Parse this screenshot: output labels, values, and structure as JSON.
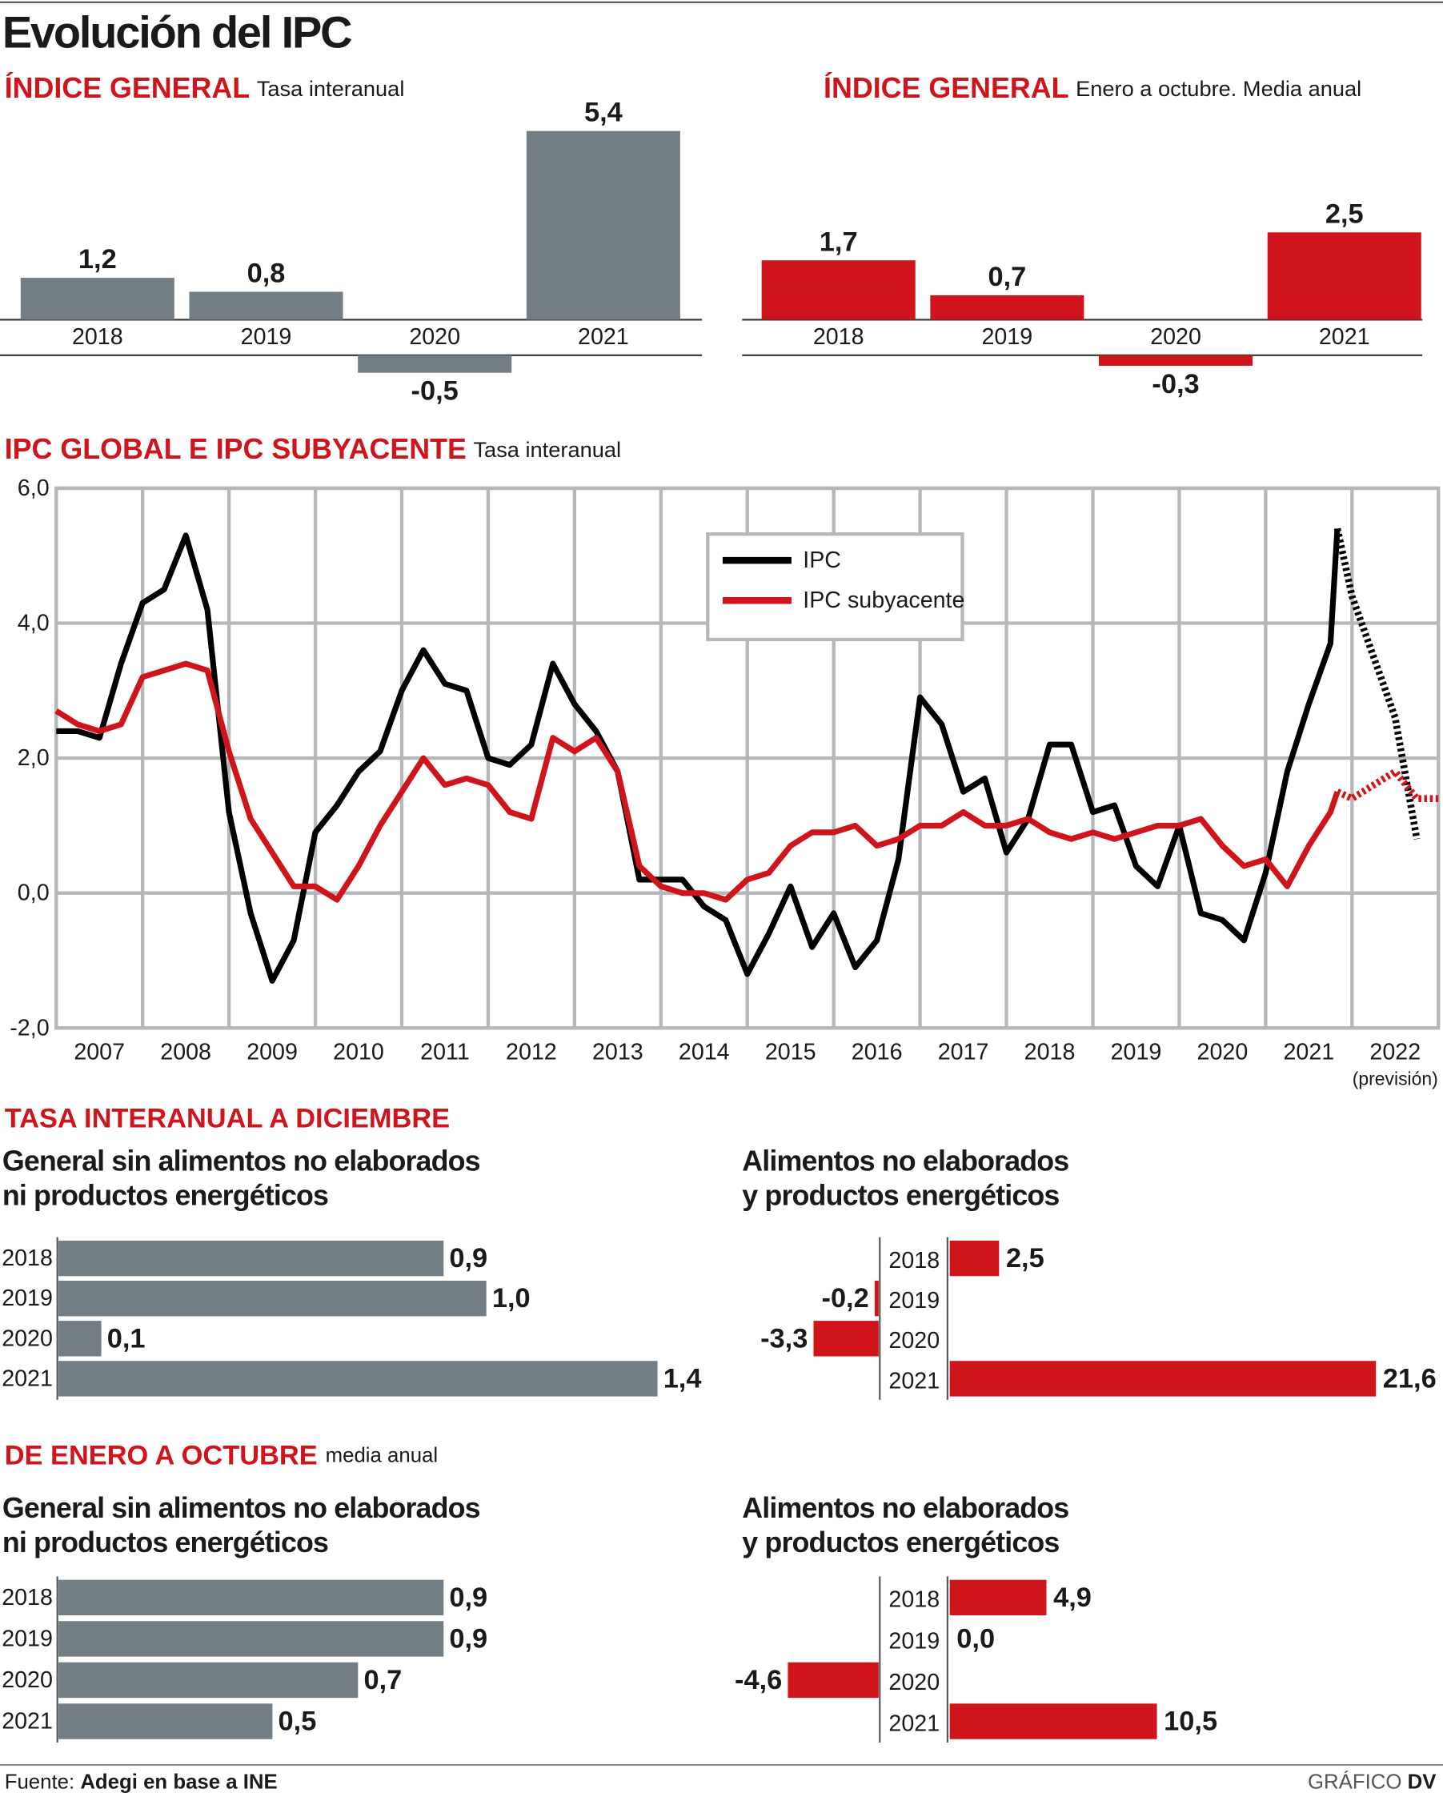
{
  "title": "Evolución del IPC",
  "groups": [
    {
      "title": "TASA INTERANUAL A DICIEMBRE"
    },
    {
      "title": "DE ENERO A OCTUBRE",
      "subtitle": "media anual"
    }
  ],
  "source": {
    "label": "Fuente:",
    "text": "Adegi en base a INE"
  },
  "credit": {
    "label": "GRÁFICO",
    "text": "DV"
  },
  "chart_data": [
    {
      "type": "bar",
      "title": "ÍNDICE GENERAL",
      "subtitle": "Tasa interanual",
      "categories": [
        "2018",
        "2019",
        "2020",
        "2021"
      ],
      "values": [
        1.2,
        0.8,
        -0.5,
        5.4
      ],
      "value_labels": [
        "1,2",
        "0,8",
        "-0,5",
        "5,4"
      ],
      "color": "#737d84"
    },
    {
      "type": "bar",
      "title": "ÍNDICE GENERAL",
      "subtitle": "Enero a octubre. Media anual",
      "categories": [
        "2018",
        "2019",
        "2020",
        "2021"
      ],
      "values": [
        1.7,
        0.7,
        -0.3,
        2.5
      ],
      "value_labels": [
        "1,7",
        "0,7",
        "-0,3",
        "2,5"
      ],
      "color": "#d0141b"
    },
    {
      "type": "line",
      "title": "IPC GLOBAL E IPC SUBYACENTE",
      "subtitle": "Tasa interanual",
      "x": [
        2007,
        2007.25,
        2007.5,
        2007.75,
        2008,
        2008.25,
        2008.5,
        2008.75,
        2009,
        2009.25,
        2009.5,
        2009.75,
        2010,
        2010.25,
        2010.5,
        2010.75,
        2011,
        2011.25,
        2011.5,
        2011.75,
        2012,
        2012.25,
        2012.5,
        2012.75,
        2013,
        2013.25,
        2013.5,
        2013.75,
        2014,
        2014.25,
        2014.5,
        2014.75,
        2015,
        2015.25,
        2015.5,
        2015.75,
        2016,
        2016.25,
        2016.5,
        2016.75,
        2017,
        2017.25,
        2017.5,
        2017.75,
        2018,
        2018.25,
        2018.5,
        2018.75,
        2019,
        2019.25,
        2019.5,
        2019.75,
        2020,
        2020.25,
        2020.5,
        2020.75,
        2021,
        2021.25,
        2021.5,
        2021.75,
        2021.83,
        2022,
        2022.25,
        2022.5,
        2022.75,
        2023
      ],
      "xlim": [
        2007,
        2023
      ],
      "xticks": [
        2007,
        2008,
        2009,
        2010,
        2011,
        2012,
        2013,
        2014,
        2015,
        2016,
        2017,
        2018,
        2019,
        2020,
        2021,
        2022
      ],
      "x_note": "(previsión)",
      "ylim": [
        -2,
        6
      ],
      "yticks": [
        {
          "value": -2,
          "label": "-2,0"
        },
        {
          "value": 0,
          "label": "0,0"
        },
        {
          "value": 2,
          "label": "2,0"
        },
        {
          "value": 4,
          "label": "4,0"
        },
        {
          "value": 6,
          "label": "6,0"
        }
      ],
      "grid": true,
      "legend": "top-right",
      "series": [
        {
          "name": "IPC",
          "color": "#000000",
          "values": [
            2.4,
            2.4,
            2.3,
            3.4,
            4.3,
            4.5,
            5.3,
            4.2,
            1.2,
            -0.3,
            -1.3,
            -0.7,
            0.9,
            1.3,
            1.8,
            2.1,
            3.0,
            3.6,
            3.1,
            3.0,
            2.0,
            1.9,
            2.2,
            3.4,
            2.8,
            2.4,
            1.8,
            0.2,
            0.2,
            0.2,
            -0.2,
            -0.4,
            -1.2,
            -0.6,
            0.1,
            -0.8,
            -0.3,
            -1.1,
            -0.7,
            0.5,
            2.9,
            2.5,
            1.5,
            1.7,
            0.6,
            1.1,
            2.2,
            2.2,
            1.2,
            1.3,
            0.4,
            0.1,
            1.0,
            -0.3,
            -0.4,
            -0.7,
            0.3,
            1.8,
            2.8,
            3.7,
            5.4,
            null,
            null,
            null,
            null,
            null
          ]
        },
        {
          "name": "IPC subyacente",
          "color": "#d0141b",
          "values": [
            2.7,
            2.5,
            2.4,
            2.5,
            3.2,
            3.3,
            3.4,
            3.3,
            2.1,
            1.1,
            0.6,
            0.1,
            0.1,
            -0.1,
            0.4,
            1.0,
            1.5,
            2.0,
            1.6,
            1.7,
            1.6,
            1.2,
            1.1,
            2.3,
            2.1,
            2.3,
            1.8,
            0.4,
            0.1,
            0.0,
            0.0,
            -0.1,
            0.2,
            0.3,
            0.7,
            0.9,
            0.9,
            1.0,
            0.7,
            0.8,
            1.0,
            1.0,
            1.2,
            1.0,
            1.0,
            1.1,
            0.9,
            0.8,
            0.9,
            0.8,
            0.9,
            1.0,
            1.0,
            1.1,
            0.7,
            0.4,
            0.5,
            0.1,
            0.7,
            1.2,
            1.5,
            null,
            null,
            null,
            null,
            null
          ]
        },
        {
          "color": "#000000",
          "style": "dotted",
          "values": [
            null,
            null,
            null,
            null,
            null,
            null,
            null,
            null,
            null,
            null,
            null,
            null,
            null,
            null,
            null,
            null,
            null,
            null,
            null,
            null,
            null,
            null,
            null,
            null,
            null,
            null,
            null,
            null,
            null,
            null,
            null,
            null,
            null,
            null,
            null,
            null,
            null,
            null,
            null,
            null,
            null,
            null,
            null,
            null,
            null,
            null,
            null,
            null,
            null,
            null,
            null,
            null,
            null,
            null,
            null,
            null,
            null,
            null,
            null,
            null,
            5.4,
            4.4,
            3.5,
            2.6,
            0.8,
            null
          ]
        },
        {
          "color": "#d0141b",
          "style": "dotted",
          "values": [
            null,
            null,
            null,
            null,
            null,
            null,
            null,
            null,
            null,
            null,
            null,
            null,
            null,
            null,
            null,
            null,
            null,
            null,
            null,
            null,
            null,
            null,
            null,
            null,
            null,
            null,
            null,
            null,
            null,
            null,
            null,
            null,
            null,
            null,
            null,
            null,
            null,
            null,
            null,
            null,
            null,
            null,
            null,
            null,
            null,
            null,
            null,
            null,
            null,
            null,
            null,
            null,
            null,
            null,
            null,
            null,
            null,
            null,
            null,
            null,
            1.5,
            1.4,
            1.6,
            1.8,
            1.4,
            1.4
          ]
        }
      ]
    },
    {
      "type": "hbar",
      "title": [
        "General sin alimentos no elaborados",
        "ni productos energéticos"
      ],
      "categories": [
        "2018",
        "2019",
        "2020",
        "2021"
      ],
      "values": [
        0.9,
        1.0,
        0.1,
        1.4
      ],
      "value_labels": [
        "0,9",
        "1,0",
        "0,1",
        "1,4"
      ],
      "color": "#737d84"
    },
    {
      "type": "hbar",
      "title": [
        "Alimentos no elaborados",
        "y productos energéticos"
      ],
      "categories": [
        "2018",
        "2019",
        "2020",
        "2021"
      ],
      "values": [
        2.5,
        -0.2,
        -3.3,
        21.6
      ],
      "value_labels": [
        "2,5",
        "-0,2",
        "-3,3",
        "21,6"
      ],
      "color": "#d0141b"
    },
    {
      "type": "hbar",
      "title": [
        "General sin alimentos no elaborados",
        "ni productos energéticos"
      ],
      "categories": [
        "2018",
        "2019",
        "2020",
        "2021"
      ],
      "values": [
        0.9,
        0.9,
        0.7,
        0.5
      ],
      "value_labels": [
        "0,9",
        "0,9",
        "0,7",
        "0,5"
      ],
      "color": "#737d84"
    },
    {
      "type": "hbar",
      "title": [
        "Alimentos no elaborados",
        "y productos energéticos"
      ],
      "categories": [
        "2018",
        "2019",
        "2020",
        "2021"
      ],
      "values": [
        4.9,
        0.0,
        -4.6,
        10.5
      ],
      "value_labels": [
        "4,9",
        "0,0",
        "-4,6",
        "10,5"
      ],
      "color": "#d0141b"
    }
  ]
}
